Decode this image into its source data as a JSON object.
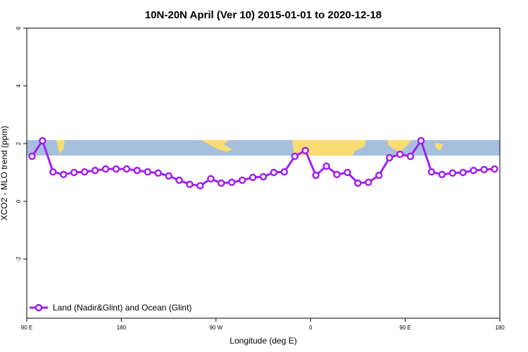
{
  "chart_data": {
    "type": "line",
    "title": "10N-20N April (Ver 10)   2015-01-01 to 2020-12-18",
    "x_label": "Longitude (deg E)",
    "y_label": "XCO2 - MLO trend (ppm)",
    "x": [
      95,
      105,
      115,
      125,
      135,
      145,
      155,
      165,
      175,
      185,
      195,
      205,
      215,
      225,
      235,
      245,
      255,
      265,
      275,
      285,
      295,
      305,
      315,
      325,
      335,
      345,
      355,
      365,
      375,
      385,
      395,
      405,
      415,
      425,
      435,
      445,
      455,
      465,
      475,
      485,
      495,
      505,
      515,
      525,
      535
    ],
    "series": [
      {
        "name": "Land (Nadir&Glint) and Ocean (Glint)",
        "color": "#a020f0",
        "values": [
          1.56,
          2.1,
          1.02,
          0.93,
          1.0,
          1.02,
          1.07,
          1.12,
          1.12,
          1.12,
          1.07,
          1.02,
          0.98,
          0.88,
          0.73,
          0.59,
          0.54,
          0.78,
          0.63,
          0.66,
          0.73,
          0.83,
          0.85,
          1.0,
          1.02,
          1.56,
          1.76,
          0.9,
          1.22,
          0.93,
          1.0,
          0.63,
          0.66,
          0.9,
          1.51,
          1.63,
          1.56,
          2.1,
          1.02,
          0.93,
          0.98,
          1.0,
          1.07,
          1.1,
          1.12
        ]
      }
    ],
    "xlim": [
      90,
      540
    ],
    "xticks": [
      {
        "value": 90,
        "label": "90 E"
      },
      {
        "value": 180,
        "label": "180"
      },
      {
        "value": 270,
        "label": "90 W"
      },
      {
        "value": 360,
        "label": "0"
      },
      {
        "value": 450,
        "label": "90 E"
      },
      {
        "value": 540,
        "label": "180"
      }
    ],
    "ylim": [
      -4.05,
      6
    ],
    "yticks": [
      -2,
      0,
      2,
      4,
      6
    ],
    "legend": "bottom-left"
  }
}
